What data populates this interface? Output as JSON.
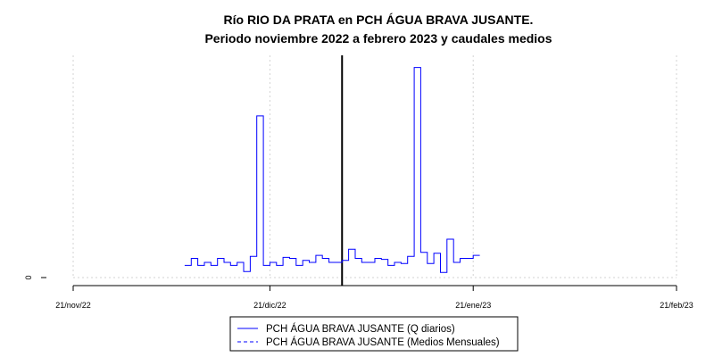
{
  "chart_data": {
    "type": "line",
    "title": "Río RIO DA PRATA en PCH ÁGUA BRAVA JUSANTE.",
    "subtitle": "Periodo noviembre 2022 a febrero 2023 y caudales medios",
    "xlabel": "",
    "ylabel": "",
    "x_ticks": [
      "21/nov/22",
      "21/dic/22",
      "21/ene/23",
      "21/feb/23"
    ],
    "y_ticks": [
      "0"
    ],
    "grid": true,
    "vline_date": "2023-01-01",
    "legend_position": "bottom",
    "series": [
      {
        "name": "PCH ÁGUA BRAVA JUSANTE (Q diarios)",
        "color": "#0000ff",
        "style": "solid",
        "x": [
          "2022-12-08",
          "2022-12-09",
          "2022-12-10",
          "2022-12-11",
          "2022-12-12",
          "2022-12-13",
          "2022-12-14",
          "2022-12-15",
          "2022-12-16",
          "2022-12-17",
          "2022-12-18",
          "2022-12-19",
          "2022-12-20",
          "2022-12-21",
          "2022-12-22",
          "2022-12-23",
          "2022-12-24",
          "2022-12-25",
          "2022-12-26",
          "2022-12-27",
          "2022-12-28",
          "2022-12-29",
          "2022-12-30",
          "2022-12-31",
          "2023-01-01",
          "2023-01-02",
          "2023-01-03",
          "2023-01-04",
          "2023-01-05",
          "2023-01-06",
          "2023-01-07",
          "2023-01-08",
          "2023-01-09",
          "2023-01-10",
          "2023-01-11",
          "2023-01-12",
          "2023-01-13",
          "2023-01-14",
          "2023-01-15",
          "2023-01-16",
          "2023-01-17",
          "2023-01-18",
          "2023-01-19",
          "2023-01-20",
          "2023-01-21"
        ],
        "y": [
          1.2,
          1.9,
          1.2,
          1.5,
          1.2,
          1.9,
          1.5,
          1.2,
          1.5,
          0.6,
          2.1,
          16.0,
          1.2,
          1.5,
          1.2,
          2.0,
          1.9,
          1.2,
          1.7,
          1.5,
          2.2,
          1.9,
          1.5,
          1.5,
          1.7,
          2.8,
          1.9,
          1.5,
          1.5,
          1.9,
          1.8,
          1.2,
          1.5,
          1.4,
          2.1,
          20.8,
          2.5,
          1.4,
          2.4,
          0.5,
          3.8,
          1.5,
          1.9,
          1.9,
          2.2
        ]
      },
      {
        "name": "PCH ÁGUA BRAVA JUSANTE (Medios Mensuales)",
        "color": "#0000ff",
        "style": "dashed",
        "x": [],
        "y": []
      }
    ],
    "xlim": [
      "2022-11-21",
      "2023-02-21"
    ],
    "ylim": [
      0,
      22
    ]
  }
}
